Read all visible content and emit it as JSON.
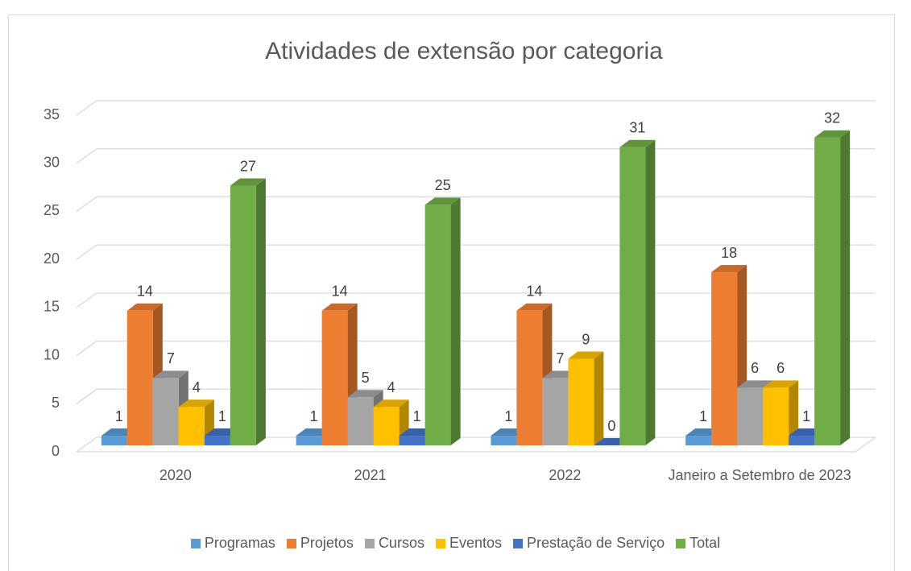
{
  "chart_data": {
    "type": "bar3d",
    "title": "Atividades de extensão por categoria",
    "categories": [
      "2020",
      "2021",
      "2022",
      "Janeiro a Setembro de 2023"
    ],
    "series": [
      {
        "name": "Programas",
        "color": "#5b9bd5",
        "values": [
          1,
          1,
          1,
          1
        ]
      },
      {
        "name": "Projetos",
        "color": "#ed7d31",
        "values": [
          14,
          14,
          14,
          18
        ]
      },
      {
        "name": "Cursos",
        "color": "#a5a5a5",
        "values": [
          7,
          5,
          7,
          6
        ]
      },
      {
        "name": "Eventos",
        "color": "#ffc000",
        "values": [
          4,
          4,
          9,
          6
        ]
      },
      {
        "name": "Prestação de Serviço",
        "color": "#4472c4",
        "values": [
          1,
          1,
          0,
          1
        ]
      },
      {
        "name": "Total",
        "color": "#70ad47",
        "values": [
          27,
          25,
          31,
          32
        ]
      }
    ],
    "ylim": [
      0,
      35
    ],
    "yticks": [
      0,
      5,
      10,
      15,
      20,
      25,
      30,
      35
    ],
    "grid": true,
    "legend": "bottom"
  }
}
